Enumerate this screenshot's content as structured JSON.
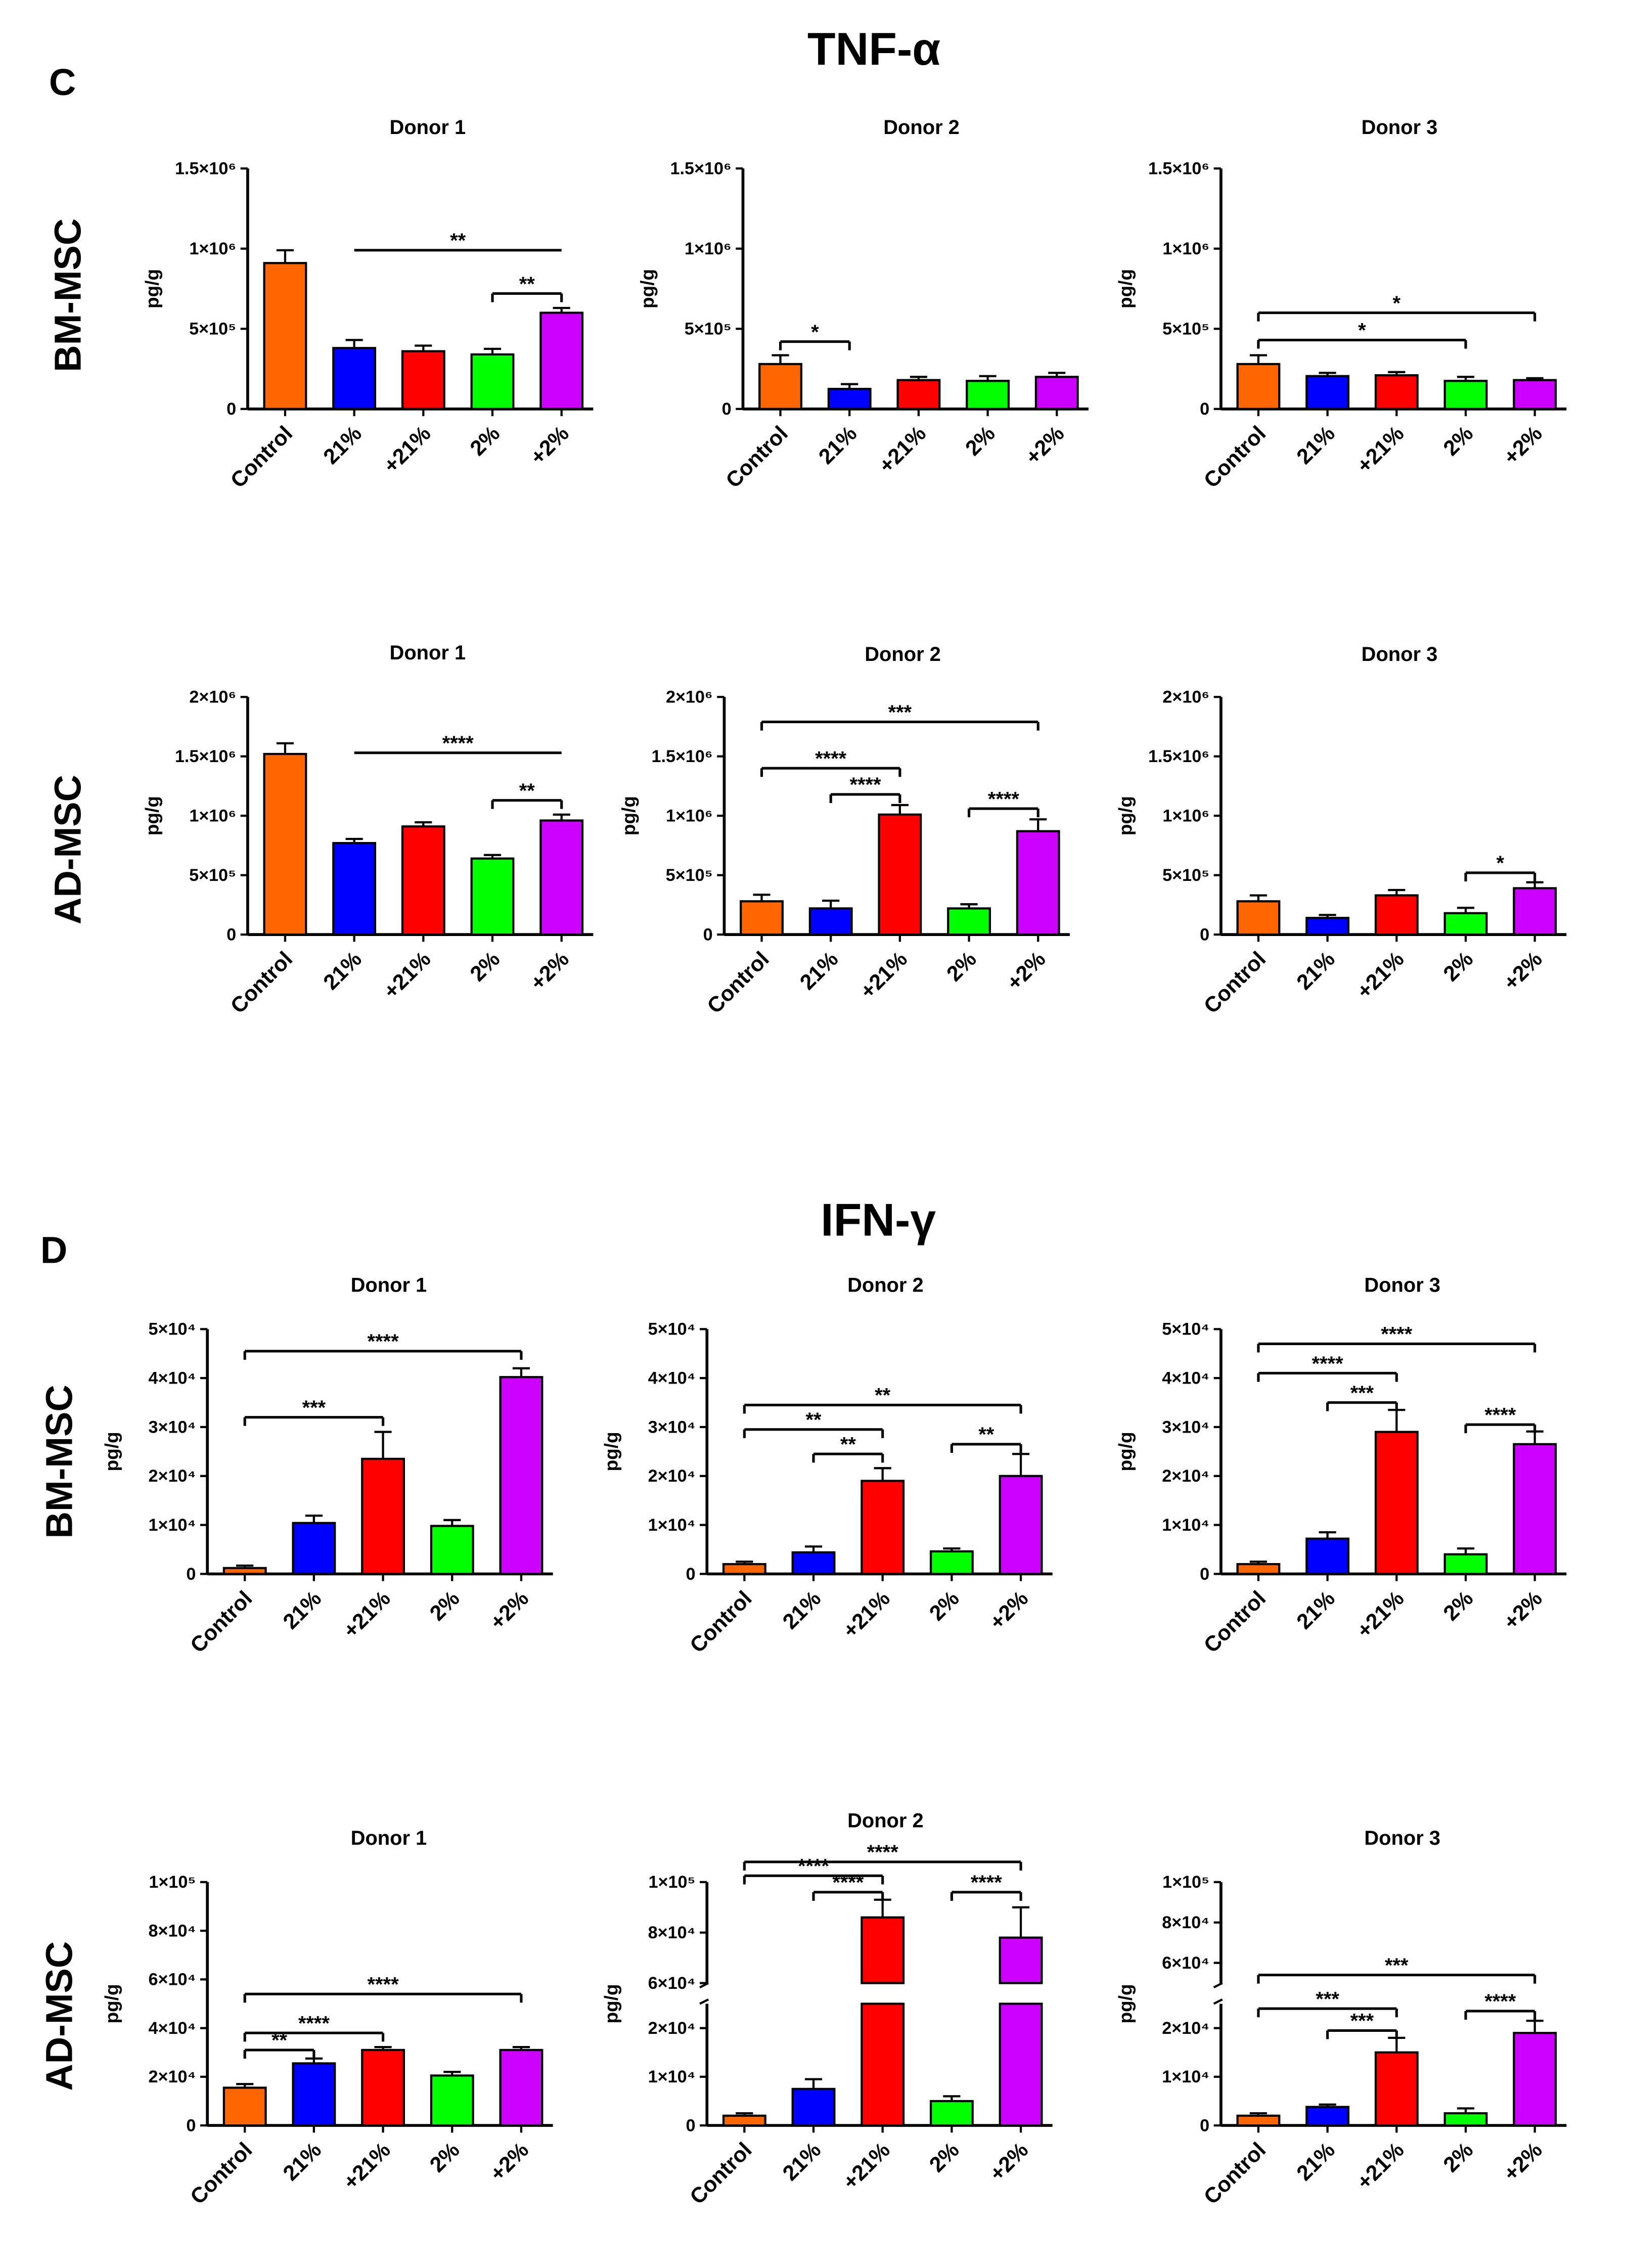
{
  "sections": [
    {
      "letter": "C",
      "title": "TNF-α"
    },
    {
      "letter": "D",
      "title": "IFN-γ"
    }
  ],
  "row_labels": [
    "BM-MSC",
    "AD-MSC",
    "BM-MSC",
    "AD-MSC"
  ],
  "colors": {
    "Control": "#ff6600",
    "21%": "#0000ff",
    "+21%": "#ff0000",
    "2%": "#00ff00",
    "+2%": "#cc00ff",
    "axis": "#000000"
  },
  "chart_data": [
    {
      "type": "bar",
      "title": "Donor 1",
      "ylabel": "pg/g",
      "categories": [
        "Control",
        "21%",
        "+21%",
        "2%",
        "+2%"
      ],
      "values": [
        910000,
        380000,
        360000,
        340000,
        600000
      ],
      "errors": [
        80000,
        50000,
        35000,
        35000,
        30000
      ],
      "ylim": [
        0,
        1500000
      ],
      "yticks": [
        0,
        500000,
        1000000,
        1500000
      ],
      "ytick_labels": [
        "0",
        "5×10⁵",
        "1×10⁶",
        "1.5×10⁶"
      ],
      "annotations": [
        {
          "from": 1,
          "to": 4,
          "label": "**",
          "y": 990000,
          "ticks": false
        },
        {
          "from": 3,
          "to": 4,
          "label": "**",
          "y": 720000
        }
      ]
    },
    {
      "type": "bar",
      "title": "Donor 2",
      "ylabel": "pg/g",
      "categories": [
        "Control",
        "21%",
        "+21%",
        "2%",
        "+2%"
      ],
      "values": [
        280000,
        125000,
        180000,
        175000,
        200000
      ],
      "errors": [
        55000,
        30000,
        20000,
        30000,
        25000
      ],
      "ylim": [
        0,
        1500000
      ],
      "yticks": [
        0,
        500000,
        1000000,
        1500000
      ],
      "ytick_labels": [
        "0",
        "5×10⁵",
        "1×10⁶",
        "1.5×10⁶"
      ],
      "annotations": [
        {
          "from": 0,
          "to": 1,
          "label": "*",
          "y": 420000
        }
      ]
    },
    {
      "type": "bar",
      "title": "Donor 3",
      "ylabel": "pg/g",
      "categories": [
        "Control",
        "21%",
        "+21%",
        "2%",
        "+2%"
      ],
      "values": [
        280000,
        205000,
        210000,
        175000,
        180000
      ],
      "errors": [
        55000,
        20000,
        20000,
        25000,
        12000
      ],
      "ylim": [
        0,
        1500000
      ],
      "yticks": [
        0,
        500000,
        1000000,
        1500000
      ],
      "ytick_labels": [
        "0",
        "5×10⁵",
        "1×10⁶",
        "1.5×10⁶"
      ],
      "annotations": [
        {
          "from": 0,
          "to": 4,
          "label": "*",
          "y": 600000
        },
        {
          "from": 0,
          "to": 3,
          "label": "*",
          "y": 430000
        }
      ]
    },
    {
      "type": "bar",
      "title": "Donor 1",
      "ylabel": "pg/g",
      "categories": [
        "Control",
        "21%",
        "+21%",
        "2%",
        "+2%"
      ],
      "values": [
        1520000,
        770000,
        910000,
        640000,
        960000
      ],
      "errors": [
        90000,
        35000,
        35000,
        30000,
        50000
      ],
      "ylim": [
        0,
        2000000
      ],
      "yticks": [
        0,
        500000,
        1000000,
        1500000,
        2000000
      ],
      "ytick_labels": [
        "0",
        "5×10⁵",
        "1×10⁶",
        "1.5×10⁶",
        "2×10⁶"
      ],
      "annotations": [
        {
          "from": 1,
          "to": 4,
          "label": "****",
          "y": 1530000,
          "ticks": false
        },
        {
          "from": 3,
          "to": 4,
          "label": "**",
          "y": 1130000
        }
      ]
    },
    {
      "type": "bar",
      "title": "Donor 2",
      "ylabel": "pg/g",
      "categories": [
        "Control",
        "21%",
        "+21%",
        "2%",
        "+2%"
      ],
      "values": [
        280000,
        220000,
        1010000,
        220000,
        870000
      ],
      "errors": [
        55000,
        65000,
        80000,
        35000,
        100000
      ],
      "ylim": [
        0,
        2000000
      ],
      "yticks": [
        0,
        500000,
        1000000,
        1500000,
        2000000
      ],
      "ytick_labels": [
        "0",
        "5×10⁵",
        "1×10⁶",
        "1.5×10⁶",
        "2×10⁶"
      ],
      "annotations": [
        {
          "from": 0,
          "to": 4,
          "label": "***",
          "y": 1790000
        },
        {
          "from": 0,
          "to": 2,
          "label": "****",
          "y": 1400000
        },
        {
          "from": 1,
          "to": 2,
          "label": "****",
          "y": 1180000
        },
        {
          "from": 3,
          "to": 4,
          "label": "****",
          "y": 1060000
        }
      ]
    },
    {
      "type": "bar",
      "title": "Donor 3",
      "ylabel": "pg/g",
      "categories": [
        "Control",
        "21%",
        "+21%",
        "2%",
        "+2%"
      ],
      "values": [
        280000,
        140000,
        330000,
        180000,
        390000
      ],
      "errors": [
        50000,
        25000,
        45000,
        45000,
        50000
      ],
      "ylim": [
        0,
        2000000
      ],
      "yticks": [
        0,
        500000,
        1000000,
        1500000,
        2000000
      ],
      "ytick_labels": [
        "0",
        "5×10⁵",
        "1×10⁶",
        "1.5×10⁶",
        "2×10⁶"
      ],
      "annotations": [
        {
          "from": 3,
          "to": 4,
          "label": "*",
          "y": 520000
        }
      ]
    },
    {
      "type": "bar",
      "title": "Donor 1",
      "ylabel": "pg/g",
      "categories": [
        "Control",
        "21%",
        "+21%",
        "2%",
        "+2%"
      ],
      "values": [
        1200,
        10400,
        23500,
        9800,
        40200
      ],
      "errors": [
        500,
        1500,
        5500,
        1200,
        1800
      ],
      "ylim": [
        0,
        50000
      ],
      "yticks": [
        0,
        10000,
        20000,
        30000,
        40000,
        50000
      ],
      "ytick_labels": [
        "0",
        "1×10⁴",
        "2×10⁴",
        "3×10⁴",
        "4×10⁴",
        "5×10⁴"
      ],
      "annotations": [
        {
          "from": 0,
          "to": 4,
          "label": "****",
          "y": 45500
        },
        {
          "from": 0,
          "to": 2,
          "label": "***",
          "y": 32000
        }
      ]
    },
    {
      "type": "bar",
      "title": "Donor 2",
      "ylabel": "pg/g",
      "categories": [
        "Control",
        "21%",
        "+21%",
        "2%",
        "+2%"
      ],
      "values": [
        2000,
        4400,
        19000,
        4600,
        20000
      ],
      "errors": [
        500,
        1200,
        2600,
        600,
        4500
      ],
      "ylim": [
        0,
        50000
      ],
      "yticks": [
        0,
        10000,
        20000,
        30000,
        40000,
        50000
      ],
      "ytick_labels": [
        "0",
        "1×10⁴",
        "2×10⁴",
        "3×10⁴",
        "4×10⁴",
        "5×10⁴"
      ],
      "annotations": [
        {
          "from": 0,
          "to": 4,
          "label": "**",
          "y": 34500
        },
        {
          "from": 0,
          "to": 2,
          "label": "**",
          "y": 29500
        },
        {
          "from": 1,
          "to": 2,
          "label": "**",
          "y": 24500
        },
        {
          "from": 3,
          "to": 4,
          "label": "**",
          "y": 26500
        }
      ]
    },
    {
      "type": "bar",
      "title": "Donor 3",
      "ylabel": "pg/g",
      "categories": [
        "Control",
        "21%",
        "+21%",
        "2%",
        "+2%"
      ],
      "values": [
        2000,
        7200,
        29000,
        4000,
        26500
      ],
      "errors": [
        500,
        1300,
        4500,
        1200,
        2600
      ],
      "ylim": [
        0,
        50000
      ],
      "yticks": [
        0,
        10000,
        20000,
        30000,
        40000,
        50000
      ],
      "ytick_labels": [
        "0",
        "1×10⁴",
        "2×10⁴",
        "3×10⁴",
        "4×10⁴",
        "5×10⁴"
      ],
      "annotations": [
        {
          "from": 0,
          "to": 4,
          "label": "****",
          "y": 47000
        },
        {
          "from": 0,
          "to": 2,
          "label": "****",
          "y": 41000
        },
        {
          "from": 1,
          "to": 2,
          "label": "***",
          "y": 35000
        },
        {
          "from": 3,
          "to": 4,
          "label": "****",
          "y": 30500
        }
      ]
    },
    {
      "type": "bar",
      "title": "Donor 1",
      "ylabel": "pg/g",
      "categories": [
        "Control",
        "21%",
        "+21%",
        "2%",
        "+2%"
      ],
      "values": [
        15500,
        25500,
        31000,
        20500,
        31000
      ],
      "errors": [
        1500,
        2000,
        1200,
        1500,
        1200
      ],
      "ylim": [
        0,
        100000
      ],
      "yticks": [
        0,
        20000,
        40000,
        60000,
        80000,
        100000
      ],
      "ytick_labels": [
        "0",
        "2×10⁴",
        "4×10⁴",
        "6×10⁴",
        "8×10⁴",
        "1×10⁵"
      ],
      "annotations": [
        {
          "from": 0,
          "to": 4,
          "label": "****",
          "y": 54000
        },
        {
          "from": 0,
          "to": 2,
          "label": "****",
          "y": 38000
        },
        {
          "from": 0,
          "to": 1,
          "label": "**",
          "y": 31000
        }
      ]
    },
    {
      "type": "bar",
      "title": "Donor 2",
      "ylabel": "pg/g",
      "categories": [
        "Control",
        "21%",
        "+21%",
        "2%",
        "+2%"
      ],
      "values": [
        2000,
        7500,
        86000,
        5000,
        78000
      ],
      "errors": [
        500,
        2000,
        7000,
        1000,
        12000
      ],
      "ylim": [
        0,
        100000
      ],
      "yticks": [
        0,
        10000,
        20000,
        60000,
        80000,
        100000
      ],
      "ytick_labels": [
        "0",
        "1×10⁴",
        "2×10⁴",
        "6×10⁴",
        "8×10⁴",
        "1×10⁵"
      ],
      "broken_axis": {
        "lower": [
          0,
          25000
        ],
        "upper": [
          60000,
          100000
        ]
      },
      "annotations": [
        {
          "from": 0,
          "to": 4,
          "label": "****",
          "y": 108000
        },
        {
          "from": 0,
          "to": 2,
          "label": "****",
          "y": 102500
        },
        {
          "from": 1,
          "to": 2,
          "label": "****",
          "y": 96000
        },
        {
          "from": 3,
          "to": 4,
          "label": "****",
          "y": 96000
        }
      ]
    },
    {
      "type": "bar",
      "title": "Donor 3",
      "ylabel": "pg/g",
      "categories": [
        "Control",
        "21%",
        "+21%",
        "2%",
        "+2%"
      ],
      "values": [
        2000,
        3800,
        15000,
        2500,
        19000
      ],
      "errors": [
        500,
        500,
        3000,
        1000,
        2500
      ],
      "ylim": [
        0,
        100000
      ],
      "yticks": [
        0,
        10000,
        20000,
        60000,
        80000,
        100000
      ],
      "ytick_labels": [
        "0",
        "1×10⁴",
        "2×10⁴",
        "6×10⁴",
        "8×10⁴",
        "1×10⁵"
      ],
      "broken_axis": {
        "lower": [
          0,
          25000
        ],
        "upper": [
          50000,
          100000
        ]
      },
      "annotations": [
        {
          "from": 0,
          "to": 4,
          "label": "***",
          "y": 54000
        },
        {
          "from": 0,
          "to": 2,
          "label": "***",
          "y": 24000
        },
        {
          "from": 1,
          "to": 2,
          "label": "***",
          "y": 19500
        },
        {
          "from": 3,
          "to": 4,
          "label": "****",
          "y": 23500
        }
      ]
    }
  ]
}
